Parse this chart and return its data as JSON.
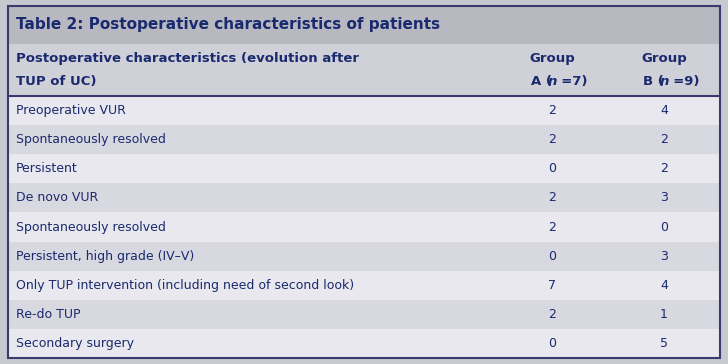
{
  "title": "Table 2: Postoperative characteristics of patients",
  "rows": [
    [
      "Preoperative VUR",
      "2",
      "4"
    ],
    [
      "Spontaneously resolved",
      "2",
      "2"
    ],
    [
      "Persistent",
      "0",
      "2"
    ],
    [
      "De novo VUR",
      "2",
      "3"
    ],
    [
      "Spontaneously resolved",
      "2",
      "0"
    ],
    [
      "Persistent, high grade (IV–V)",
      "0",
      "3"
    ],
    [
      "Only TUP intervention (including need of second look)",
      "7",
      "4"
    ],
    [
      "Re-do TUP",
      "2",
      "1"
    ],
    [
      "Secondary surgery",
      "0",
      "5"
    ]
  ],
  "title_bg": "#b8b8c0",
  "header_bg": "#d0d0d8",
  "row_bg_light": "#e8e8ee",
  "row_bg_dark": "#d8d8e0",
  "text_color": "#1a2a6e",
  "divider_color": "#3a3a6e",
  "outer_bg": "#c8c8d0",
  "title_fontsize": 11,
  "header_fontsize": 9.5,
  "row_fontsize": 9,
  "col_split1": 0.685,
  "col_split2": 0.843
}
